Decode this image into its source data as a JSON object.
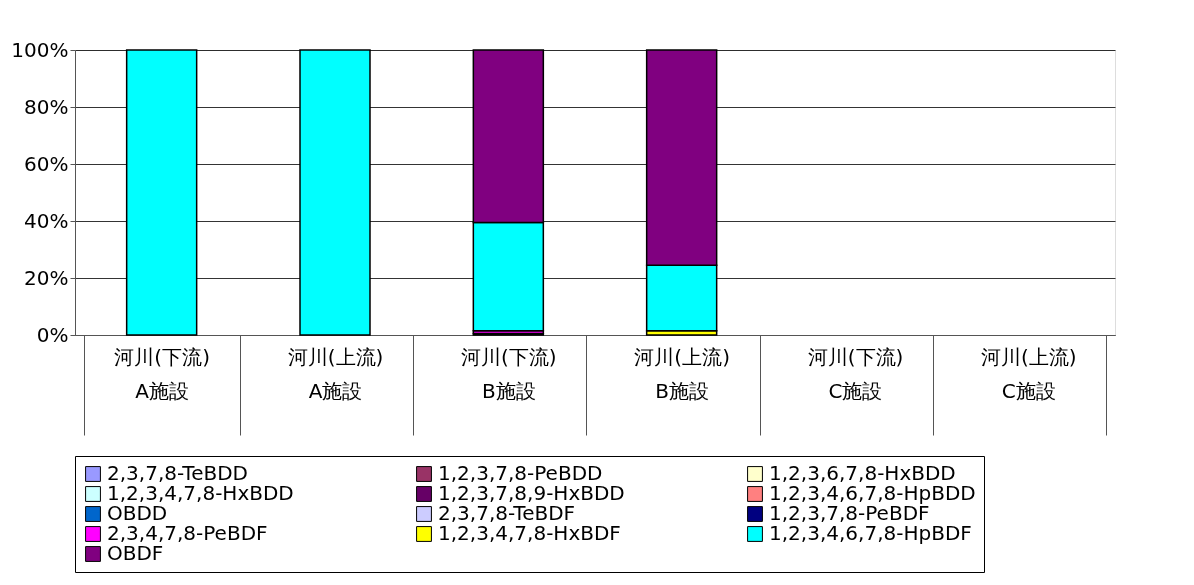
{
  "chart_data": {
    "type": "bar",
    "stacked": true,
    "categories": [
      "河川(下流)\nA施設",
      "河川(上流)\nA施設",
      "河川(下流)\nB施設",
      "河川(上流)\nB施設",
      "河川(下流)\nC施設",
      "河川(上流)\nC施設"
    ],
    "series": [
      {
        "name": "2,3,7,8-TeBDD",
        "color": "#9999ff",
        "values": [
          0,
          0,
          0,
          0,
          0,
          0
        ]
      },
      {
        "name": "1,2,3,7,8-PeBDD",
        "color": "#993366",
        "values": [
          0,
          0,
          0,
          0,
          0,
          0
        ]
      },
      {
        "name": "1,2,3,6,7,8-HxBDD",
        "color": "#ffffcc",
        "values": [
          0,
          0,
          0,
          0,
          0,
          0
        ]
      },
      {
        "name": "1,2,3,4,7,8-HxBDD",
        "color": "#ccffff",
        "values": [
          0,
          0,
          0,
          0,
          0,
          0
        ]
      },
      {
        "name": "1,2,3,7,8,9-HxBDD",
        "color": "#660066",
        "values": [
          0,
          0,
          0,
          0,
          0,
          0
        ]
      },
      {
        "name": "1,2,3,4,6,7,8-HpBDD",
        "color": "#ff8080",
        "values": [
          0,
          0,
          0,
          0,
          0,
          0
        ]
      },
      {
        "name": "OBDD",
        "color": "#0066cc",
        "values": [
          0,
          0,
          0,
          0,
          0,
          0
        ]
      },
      {
        "name": "2,3,7,8-TeBDF",
        "color": "#ccccff",
        "values": [
          0,
          0,
          0,
          0,
          0,
          0
        ]
      },
      {
        "name": "1,2,3,7,8-PeBDF",
        "color": "#000080",
        "values": [
          0,
          0,
          0.5,
          0,
          0,
          0
        ]
      },
      {
        "name": "2,3,4,7,8-PeBDF",
        "color": "#ff00ff",
        "values": [
          0,
          0,
          1.0,
          0,
          0,
          0
        ]
      },
      {
        "name": "1,2,3,4,7,8-HxBDF",
        "color": "#ffff00",
        "values": [
          0,
          0,
          0,
          1.5,
          0,
          0
        ]
      },
      {
        "name": "1,2,3,4,6,7,8-HpBDF",
        "color": "#00ffff",
        "values": [
          100,
          100,
          38.0,
          23.0,
          0,
          0
        ]
      },
      {
        "name": "OBDF",
        "color": "#800080",
        "values": [
          0,
          0,
          60.5,
          75.5,
          0,
          0
        ]
      }
    ],
    "ylim": [
      0,
      100
    ],
    "yticks": [
      {
        "value": 0,
        "label": "0%"
      },
      {
        "value": 20,
        "label": "20%"
      },
      {
        "value": 40,
        "label": "40%"
      },
      {
        "value": 60,
        "label": "60%"
      },
      {
        "value": 80,
        "label": "80%"
      },
      {
        "value": 100,
        "label": "100%"
      }
    ],
    "grid": "y",
    "legend": "bottom"
  }
}
